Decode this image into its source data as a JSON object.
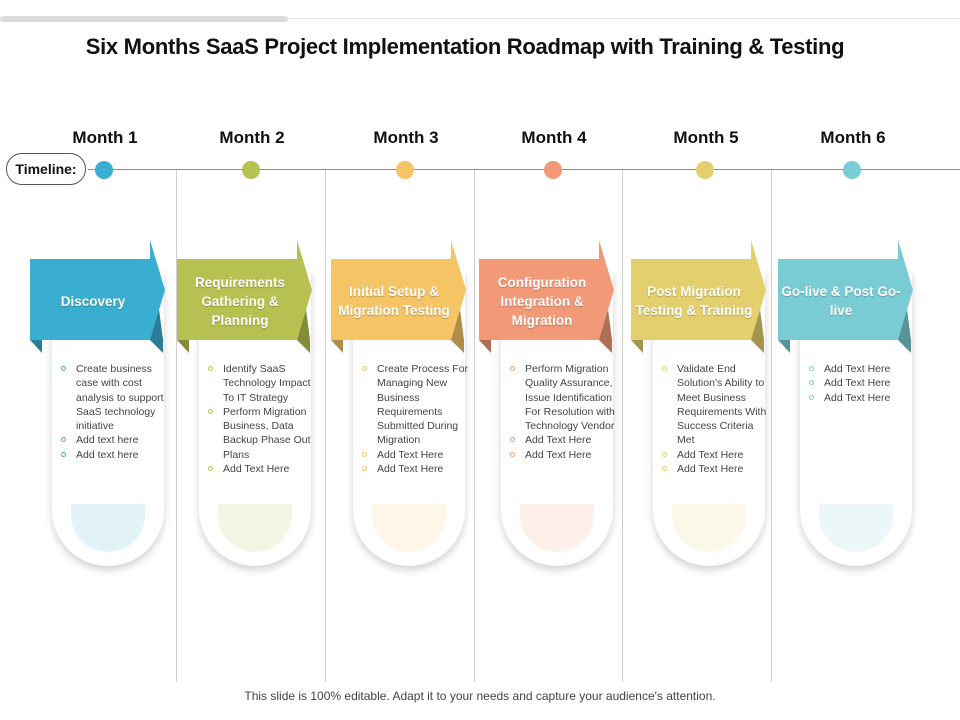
{
  "title": "Six Months SaaS Project Implementation Roadmap with Training & Testing",
  "timeline_label": "Timeline:",
  "footer": "This slide is 100% editable. Adapt it to your needs and capture your audience's attention.",
  "colors": {
    "month1": "#3aaed0",
    "month2": "#b7c152",
    "month3": "#f5c464",
    "month4": "#f29a78",
    "month5": "#e3cf6d",
    "month6": "#79ccd4"
  },
  "months": [
    {
      "label": "Month 1",
      "stage": "Discovery",
      "bullets": [
        "Create business case with cost analysis to support SaaS technology initiative",
        "Add text here",
        "Add text here"
      ]
    },
    {
      "label": "Month 2",
      "stage": "Requirements Gathering & Planning",
      "bullets": [
        "Identify SaaS Technology Impact To IT Strategy",
        "Perform Migration Business, Data Backup Phase Out Plans",
        "Add Text Here"
      ]
    },
    {
      "label": "Month 3",
      "stage": "Initial Setup & Migration Testing",
      "bullets": [
        "Create Process For Managing New Business Requirements Submitted During Migration",
        "Add Text Here",
        "Add Text Here"
      ]
    },
    {
      "label": "Month 4",
      "stage": "Configuration Integration & Migration",
      "bullets": [
        "Perform Migration Quality Assurance, Issue Identification For Resolution with Technology Vendor",
        "Add Text Here",
        "Add Text Here"
      ]
    },
    {
      "label": "Month 5",
      "stage": "Post Migration Testing & Training",
      "bullets": [
        "Validate End Solution's Ability to Meet Business Requirements With Success Criteria Met",
        "Add Text Here",
        "Add Text Here"
      ]
    },
    {
      "label": "Month 6",
      "stage": "Go-live & Post Go-live",
      "bullets": [
        "Add Text Here",
        "Add Text Here",
        "Add Text Here"
      ]
    }
  ]
}
